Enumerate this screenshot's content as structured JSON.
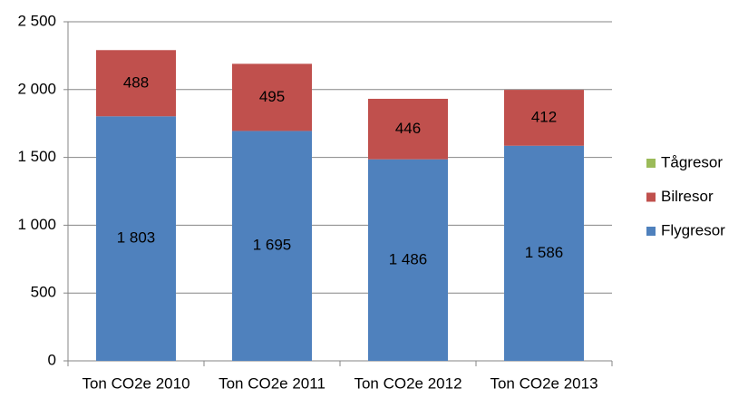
{
  "chart_data": {
    "type": "stacked-bar",
    "categories": [
      "Ton CO2e 2010",
      "Ton CO2e 2011",
      "Ton CO2e 2012",
      "Ton CO2e 2013"
    ],
    "series": [
      {
        "name": "Flygresor",
        "color": "#4f81bd",
        "values": [
          1803,
          1695,
          1486,
          1586
        ],
        "value_labels": [
          "1 803",
          "1 695",
          "1 486",
          "1 586"
        ]
      },
      {
        "name": "Bilresor",
        "color": "#c0504d",
        "values": [
          488,
          495,
          446,
          412
        ],
        "value_labels": [
          "488",
          "495",
          "446",
          "412"
        ]
      },
      {
        "name": "Tågresor",
        "color": "#9bbb59",
        "values": [
          0,
          0,
          0,
          0
        ]
      }
    ],
    "ylim": [
      0,
      2500
    ],
    "yticks": [
      0,
      500,
      {
        "value": 1000,
        "label": "1 000"
      },
      {
        "value": 1500,
        "label": "1 500"
      },
      {
        "value": 2000,
        "label": "2 000"
      },
      {
        "value": 2500,
        "label": "2 500"
      }
    ],
    "grid": true,
    "legend": "right"
  }
}
